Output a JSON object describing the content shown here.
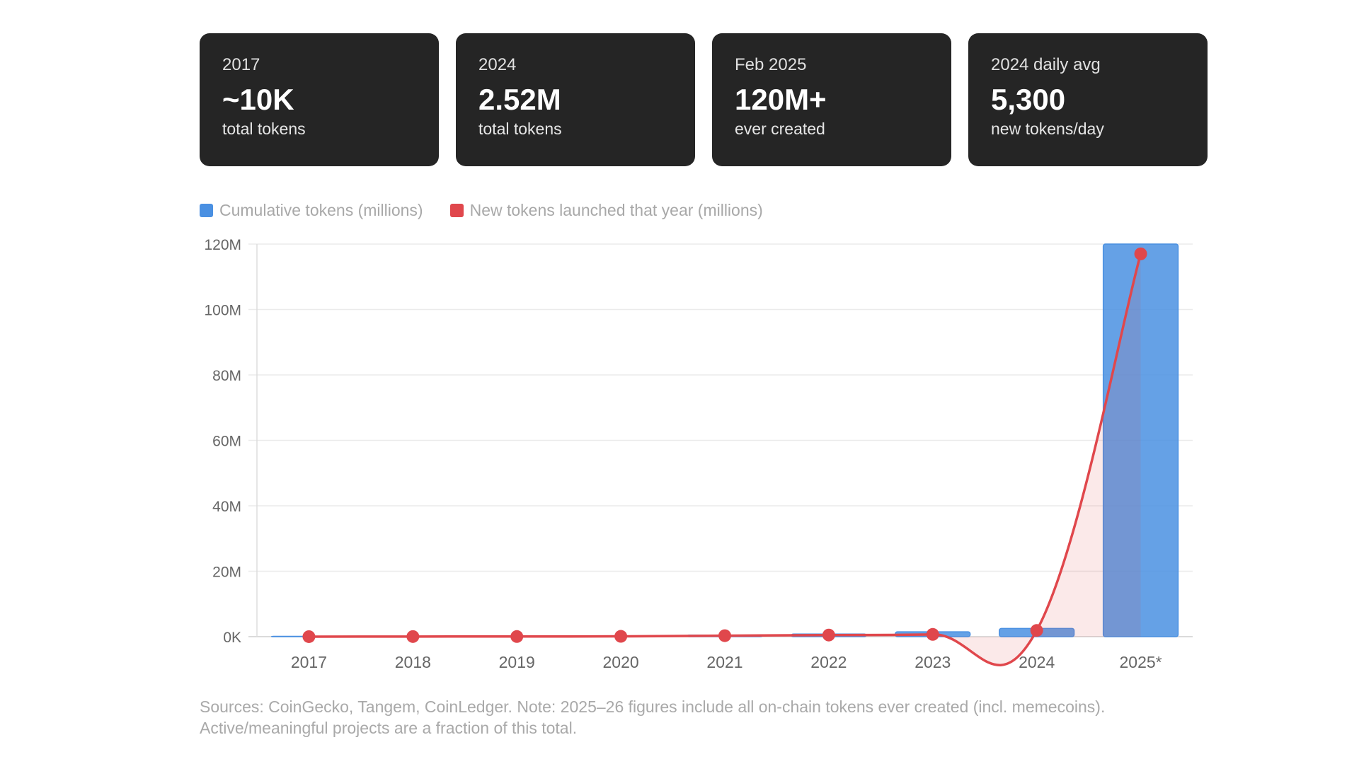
{
  "stats": [
    {
      "label": "2017",
      "value": "~10K",
      "desc": "total tokens"
    },
    {
      "label": "2024",
      "value": "2.52M",
      "desc": "total tokens"
    },
    {
      "label": "Feb 2025",
      "value": "120M+",
      "desc": "ever created"
    },
    {
      "label": "2024 daily avg",
      "value": "5,300",
      "desc": "new tokens/day"
    }
  ],
  "colors": {
    "cumulative": "#4a90e2",
    "new_tokens": "#e0474c",
    "card_bg": "#252525"
  },
  "chart_data": {
    "type": "bar",
    "categories": [
      "2017",
      "2018",
      "2019",
      "2020",
      "2021",
      "2022",
      "2023",
      "2024",
      "2025*"
    ],
    "series": [
      {
        "name": "Cumulative tokens (millions)",
        "type": "bar",
        "values": [
          0.01,
          0.05,
          0.1,
          0.2,
          0.5,
          0.8,
          1.5,
          2.52,
          120
        ]
      },
      {
        "name": "New tokens launched that year (millions)",
        "type": "line",
        "values": [
          0.01,
          0.04,
          0.05,
          0.1,
          0.3,
          0.5,
          0.7,
          1.9,
          117
        ]
      }
    ],
    "y_ticks": [
      "0K",
      "20M",
      "40M",
      "60M",
      "80M",
      "100M",
      "120M"
    ],
    "ylim": [
      0,
      120
    ],
    "grid": true,
    "legend_position": "top-left"
  },
  "footnote": "Sources: CoinGecko, Tangem, CoinLedger. Note: 2025–26 figures include all on-chain tokens ever created (incl. memecoins). Active/meaningful projects are a fraction of this total."
}
